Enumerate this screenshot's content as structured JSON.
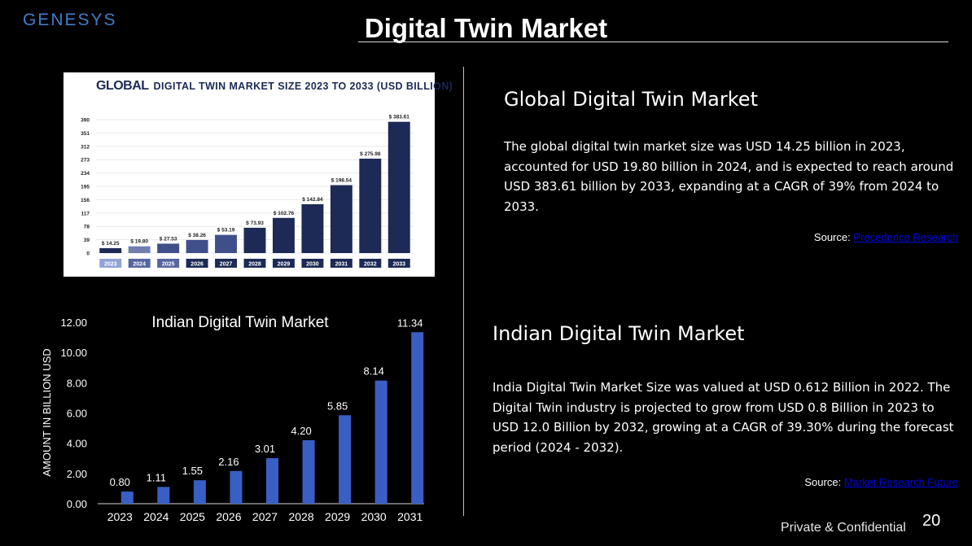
{
  "header": {
    "logo_text": "GENESYS",
    "title": "Digital Twin Market"
  },
  "global_section": {
    "heading": "Global Digital Twin Market",
    "paragraph": "The global digital twin market size was USD 14.25 billion in 2023, accounted for USD 19.80 billion in 2024, and is expected to reach around USD 383.61 billion by 2033, expanding at a CAGR of 39% from 2024 to 2033.",
    "source_label": "Source:",
    "source_link": "Precedence Research"
  },
  "indian_section": {
    "heading": "Indian Digital Twin Market",
    "paragraph": "India Digital Twin Market Size was valued at USD 0.612 Billion in 2022. The Digital Twin industry is projected to grow from USD 0.8 Billion in 2023 to USD 12.0 Billion by 2032, growing at a CAGR of 39.30% during the forecast period (2024 - 2032).",
    "source_label": "Source:",
    "source_link": "Market Research Future"
  },
  "footer": {
    "confidential": "Private & Confidential",
    "page_number": "20"
  },
  "colors": {
    "background": "#000000",
    "global_bar": "#1c2a55",
    "indian_bar": "#3a5fc4",
    "logo": "#3f7ec9"
  },
  "chart_data": [
    {
      "type": "bar",
      "title_brand": "GLOBAL",
      "title": "DIGITAL TWIN MARKET SIZE 2023 TO 2033 (USD BILLION)",
      "categories": [
        "2023",
        "2024",
        "2025",
        "2026",
        "2027",
        "2028",
        "2029",
        "2030",
        "2031",
        "2032",
        "2033"
      ],
      "values": [
        14.25,
        19.8,
        27.53,
        38.26,
        53.19,
        73.93,
        102.76,
        142.84,
        198.54,
        275.98,
        383.61
      ],
      "value_labels": [
        "$ 14.25",
        "$ 19.80",
        "$ 27.53",
        "$ 38.26",
        "$ 53.19",
        "$ 73.93",
        "$ 102.76",
        "$ 142.84",
        "$ 198.54",
        "$ 275.98",
        "$ 383.61"
      ],
      "y_ticks": [
        "0",
        "39",
        "78",
        "117",
        "156",
        "195",
        "234",
        "273",
        "312",
        "351",
        "390"
      ],
      "ylim": [
        0,
        390
      ],
      "grid": true
    },
    {
      "type": "bar",
      "title": "Indian  Digital  Twin  Market",
      "ylabel": "AMOUNT IN BILLION USD",
      "xlabel": "",
      "categories": [
        "2023",
        "2024",
        "2025",
        "2026",
        "2027",
        "2028",
        "2029",
        "2030",
        "2031"
      ],
      "values": [
        0.8,
        1.11,
        1.55,
        2.16,
        3.01,
        4.2,
        5.85,
        8.14,
        11.34
      ],
      "value_labels": [
        "0.80",
        "1.11",
        "1.55",
        "2.16",
        "3.01",
        "4.20",
        "5.85",
        "8.14",
        "11.34"
      ],
      "y_ticks": [
        "0.00",
        "2.00",
        "4.00",
        "6.00",
        "8.00",
        "10.00",
        "12.00"
      ],
      "ylim": [
        0,
        12
      ],
      "grid": false
    }
  ]
}
